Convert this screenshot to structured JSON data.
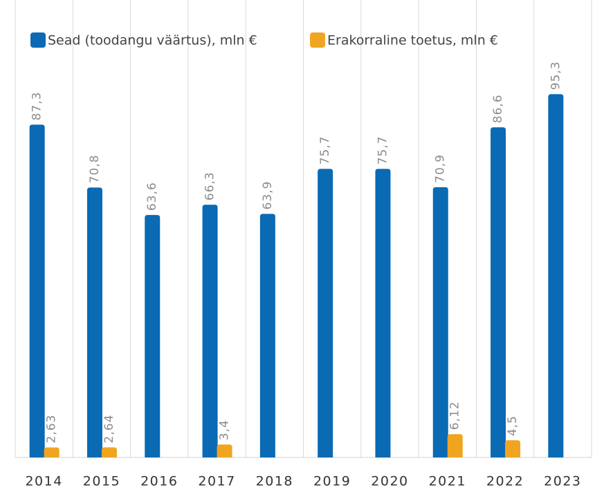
{
  "chart_data": {
    "type": "bar",
    "categories": [
      "2014",
      "2015",
      "2016",
      "2017",
      "2018",
      "2019",
      "2020",
      "2021",
      "2022",
      "2023"
    ],
    "series": [
      {
        "name": "Sead (toodangu väärtus), mln €",
        "color": "#0a6ab4",
        "values": [
          87.3,
          70.8,
          63.6,
          66.3,
          63.9,
          75.7,
          75.7,
          70.9,
          86.6,
          95.3
        ],
        "value_labels": [
          "87,3",
          "70,8",
          "63,6",
          "66,3",
          "63,9",
          "75,7",
          "75,7",
          "70,9",
          "86,6",
          "95,3"
        ]
      },
      {
        "name": "Erakorraline toetus, mln €",
        "color": "#f0a521",
        "values": [
          2.63,
          2.64,
          null,
          3.4,
          null,
          null,
          null,
          6.12,
          4.5,
          null
        ],
        "value_labels": [
          "2,63",
          "2,64",
          null,
          "3,4",
          null,
          null,
          null,
          "6,12",
          "4,5",
          null
        ]
      }
    ],
    "ylim": [
      0,
      120
    ],
    "grid": true
  }
}
